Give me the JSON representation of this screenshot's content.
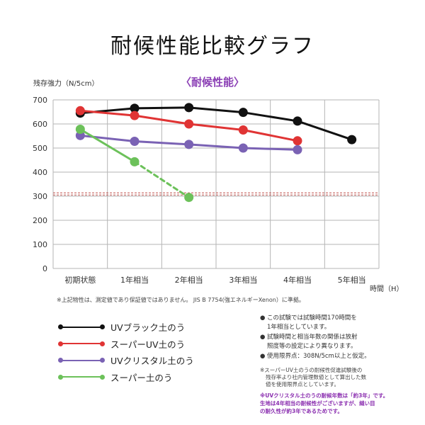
{
  "page_title": "耐候性能比較グラフ",
  "chart_data": {
    "type": "line",
    "title": "〈耐候性能〉",
    "ylabel": "残存強力（N/5cm）",
    "xlabel": "時間（H）",
    "categories": [
      "初期状態",
      "1年相当",
      "2年相当",
      "3年相当",
      "4年相当",
      "5年相当"
    ],
    "ylim": [
      0,
      700
    ],
    "yticks": [
      0,
      100,
      200,
      300,
      400,
      500,
      600,
      700
    ],
    "grid": true,
    "threshold": {
      "value": 308,
      "color": "#c0504d",
      "style": "dashed"
    },
    "series": [
      {
        "name": "UVブラック土のう",
        "color": "#111111",
        "values": [
          645,
          665,
          668,
          648,
          612,
          535
        ]
      },
      {
        "name": "スーパーUV土のう",
        "color": "#e03434",
        "values": [
          655,
          635,
          600,
          575,
          530,
          null
        ]
      },
      {
        "name": "UVクリスタル土のう",
        "color": "#7a62b4",
        "values": [
          552,
          528,
          515,
          500,
          493,
          null
        ]
      },
      {
        "name": "スーパー土のう",
        "color": "#6cc15a",
        "values": [
          578,
          443,
          295,
          null,
          null,
          null
        ],
        "dashed_from_index": 1
      }
    ],
    "annotation": "※上記物性は、測定値であり保証値ではありません。 JIS B 7754(強エネルギーXenon）に準拠。",
    "legend_position": "bottom-left"
  },
  "notes": {
    "bullets": [
      "この試験では試験時間170時間を\n1年相当としています。",
      "試験時間と相当年数の関係は放射\n照度等の設定により異なります。",
      "使用限界点：308N/5cm以上と仮定。"
    ],
    "bullet_mark": "●",
    "footnote_lead": "※スーパーUV土のうの耐候性促進試験後の",
    "footnote_lines": "残存率より社内管理数値として算出した数\n値を使用限界点としています。",
    "purple_note": "※UVクリスタル土のうの耐候年数は「約3年」です。\n生地は4年相当の耐候性がございますが、縫い目\nの耐久性が約3年であるためです。"
  }
}
